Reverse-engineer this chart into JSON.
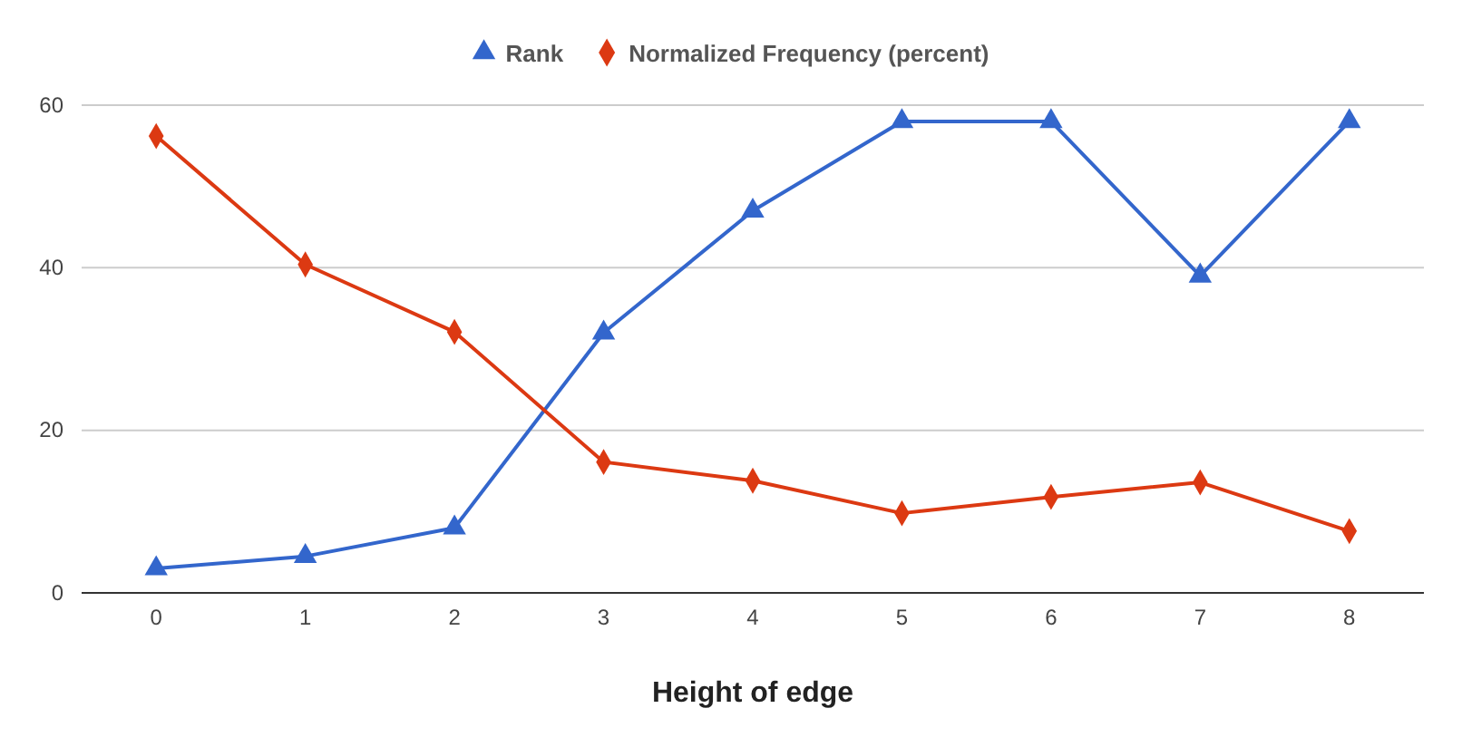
{
  "chart_data": {
    "type": "line",
    "xlabel": "Height of edge",
    "x": [
      0,
      1,
      2,
      3,
      4,
      5,
      6,
      7,
      8
    ],
    "xlim": [
      -0.5,
      8.5
    ],
    "xticks": [
      0,
      1,
      2,
      3,
      4,
      5,
      6,
      7,
      8
    ],
    "ylim": [
      0,
      60
    ],
    "yticks": [
      0,
      20,
      40,
      60
    ],
    "grid": "y",
    "legend": "top",
    "series": [
      {
        "name": "Rank",
        "color": "#3366cc",
        "marker": "triangle",
        "values": [
          3,
          4.5,
          8,
          32,
          47,
          58,
          58,
          39,
          58
        ]
      },
      {
        "name": "Normalized Frequency (percent)",
        "color": "#dc3912",
        "marker": "diamond",
        "values": [
          56.2,
          40.4,
          32.1,
          16.1,
          13.8,
          9.8,
          11.8,
          13.6,
          7.6
        ]
      }
    ]
  }
}
